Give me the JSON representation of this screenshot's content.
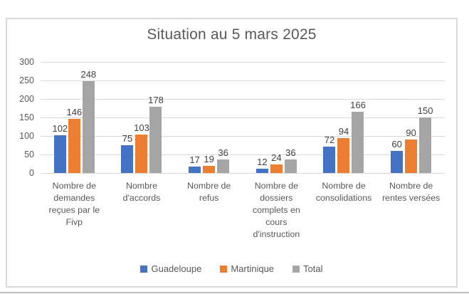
{
  "frame": {
    "background": "#ffffff",
    "bottom_edge_color": "#bfbfbf"
  },
  "chart": {
    "border_color": "#d9d9d9",
    "background": "#ffffff"
  },
  "chart_data": {
    "type": "bar",
    "title": "Situation au 5 mars 2025",
    "categories": [
      "Nombre de demandes reçues par le Fivp",
      "Nombre d'accords",
      "Nombre de refus",
      "Nombre de dossiers complets en cours d'instruction",
      "Nombre de consolidations",
      "Nombre de rentes versées"
    ],
    "series": [
      {
        "name": "Guadeloupe",
        "color": "#4472c4",
        "values": [
          102,
          75,
          17,
          12,
          72,
          60
        ]
      },
      {
        "name": "Martinique",
        "color": "#ed7d31",
        "values": [
          146,
          103,
          19,
          24,
          94,
          90
        ]
      },
      {
        "name": "Total",
        "color": "#a5a5a5",
        "values": [
          248,
          178,
          36,
          36,
          166,
          150
        ]
      }
    ],
    "ylim": [
      0,
      300
    ],
    "yticks": [
      0,
      50,
      100,
      150,
      200,
      250,
      300
    ],
    "grid": true,
    "gridline_color": "#d9d9d9",
    "legend_position": "bottom",
    "data_labels": true,
    "axis_text_color": "#595959",
    "data_label_color": "#404040"
  }
}
